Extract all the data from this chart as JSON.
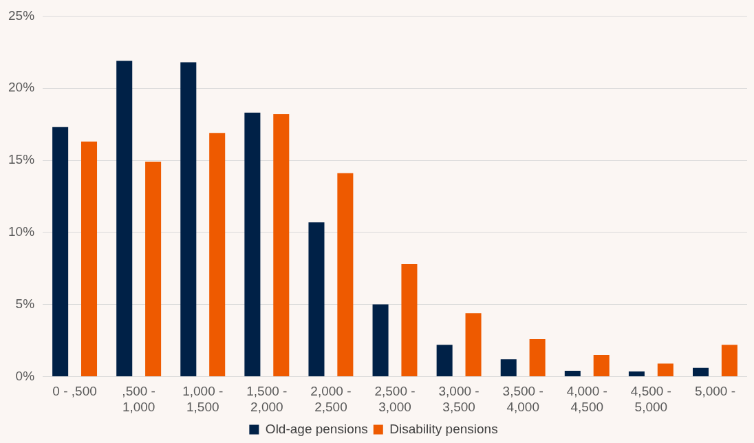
{
  "chart_data": {
    "type": "bar",
    "categories": [
      "0 - ,500",
      ",500 -\n1,000",
      "1,000 -\n1,500",
      "1,500 -\n2,000",
      "2,000 -\n2,500",
      "2,500 -\n3,000",
      "3,000 -\n3,500",
      "3,500 -\n4,000",
      "4,000 -\n4,500",
      "4,500 -\n5,000",
      "5,000 -"
    ],
    "series": [
      {
        "name": "Old-age pensions",
        "color": "#002147",
        "values": [
          17.3,
          21.9,
          21.8,
          18.3,
          10.7,
          5.0,
          2.2,
          1.2,
          0.4,
          0.35,
          0.6
        ]
      },
      {
        "name": "Disability pensions",
        "color": "#ee5a00",
        "values": [
          16.3,
          14.9,
          16.9,
          18.2,
          14.1,
          7.8,
          4.4,
          2.6,
          1.5,
          0.9,
          2.2
        ]
      }
    ],
    "ylim": [
      0,
      25
    ],
    "yticks": [
      {
        "value": 0,
        "label": "0%"
      },
      {
        "value": 5,
        "label": "5%"
      },
      {
        "value": 10,
        "label": "10%"
      },
      {
        "value": 15,
        "label": "15%"
      },
      {
        "value": 20,
        "label": "20%"
      },
      {
        "value": 25,
        "label": "25%"
      }
    ],
    "grid": "y",
    "legend": "bottom"
  }
}
